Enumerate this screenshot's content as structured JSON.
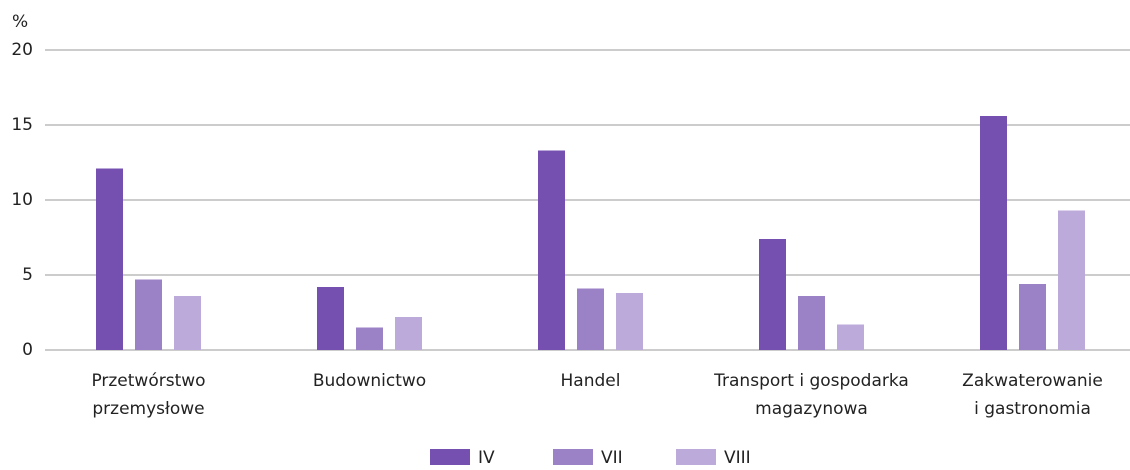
{
  "chart_data": {
    "type": "bar",
    "y_label": "%",
    "categories": [
      [
        "Przetwórstwo",
        "przemysłowe"
      ],
      [
        "Budownictwo"
      ],
      [
        "Handel"
      ],
      [
        "Transport i gospodarka",
        "magazynowa"
      ],
      [
        "Zakwaterowanie",
        "i gastronomia"
      ]
    ],
    "series": [
      {
        "name": "IV",
        "color": "#7650b0",
        "values": [
          12.1,
          4.2,
          13.3,
          7.4,
          15.6
        ]
      },
      {
        "name": "VII",
        "color": "#9b82c6",
        "values": [
          4.7,
          1.5,
          4.1,
          3.6,
          4.4
        ]
      },
      {
        "name": "VIII",
        "color": "#bcaadb",
        "values": [
          3.6,
          2.2,
          3.8,
          1.7,
          9.3
        ]
      }
    ],
    "ylim": [
      0,
      20
    ],
    "yticks": [
      0,
      5,
      10,
      15,
      20
    ],
    "grid": true
  }
}
